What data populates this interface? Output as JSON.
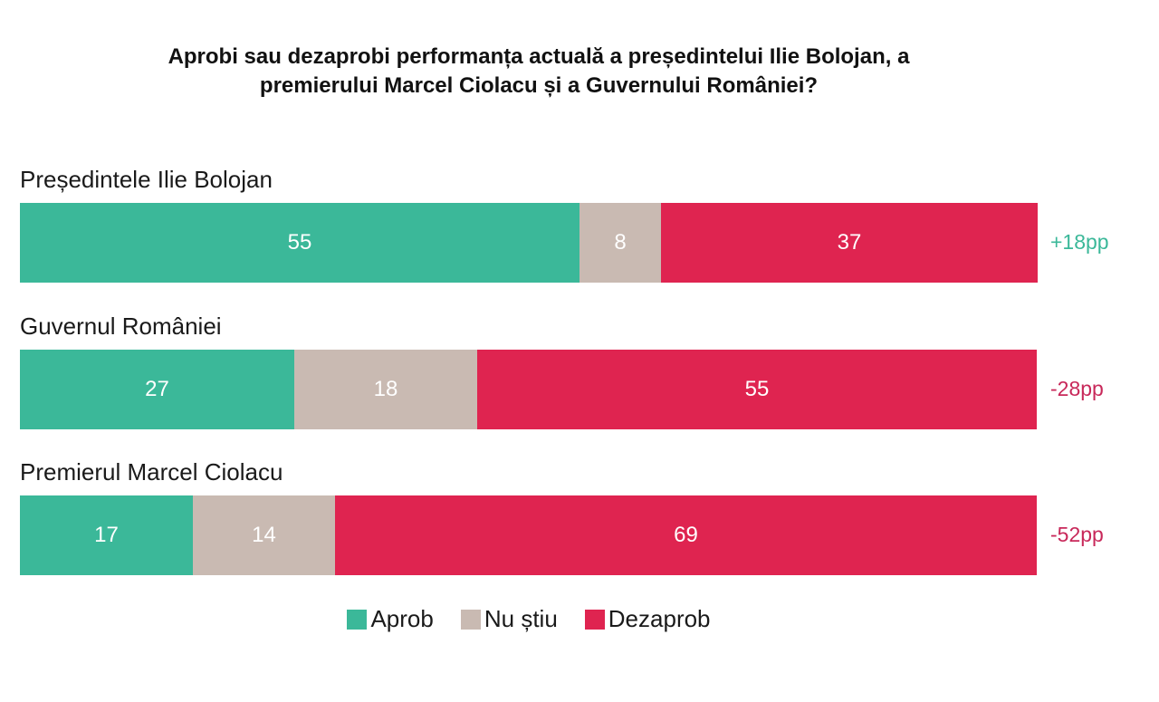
{
  "title_line1": "Aprobi sau dezaprobi performanța actuală a președintelui Ilie Bolojan, a",
  "title_line2": "premierului Marcel Ciolacu și a Guvernului României?",
  "colors": {
    "aprob": "#3bb899",
    "nu_stiu": "#c9bab2",
    "dezaprob": "#df2450",
    "net_positive": "#3bb899",
    "net_negative": "#c8285a"
  },
  "chart_data": {
    "type": "bar",
    "orientation": "horizontal",
    "stacked": true,
    "normalized_to": 100,
    "title": "Aprobi sau dezaprobi performanța actuală a președintelui Ilie Bolojan, a premierului Marcel Ciolacu și a Guvernului României?",
    "categories": [
      "Președintele Ilie Bolojan",
      "Guvernul României",
      "Premierul Marcel Ciolacu"
    ],
    "series": [
      {
        "name": "Aprob",
        "key": "aprob",
        "values": [
          55,
          27,
          17
        ]
      },
      {
        "name": "Nu știu",
        "key": "nu_stiu",
        "values": [
          8,
          18,
          14
        ]
      },
      {
        "name": "Dezaprob",
        "key": "dezaprob",
        "values": [
          37,
          55,
          69
        ]
      }
    ],
    "net": [
      "+18pp",
      "-28pp",
      "-52pp"
    ],
    "legend_position": "bottom-center",
    "xlim": [
      0,
      100
    ]
  }
}
